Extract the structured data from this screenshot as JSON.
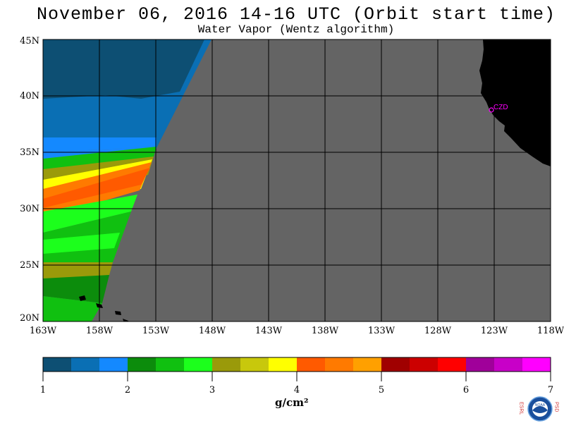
{
  "title": "November 06, 2016  14-16 UTC  (Orbit start time)",
  "subtitle": "Water Vapor (Wentz algorithm)",
  "map": {
    "lat_labels": [
      "45N",
      "40N",
      "35N",
      "30N",
      "25N",
      "20N"
    ],
    "lon_labels": [
      "163W",
      "158W",
      "153W",
      "148W",
      "143W",
      "138W",
      "133W",
      "128W",
      "123W",
      "118W"
    ],
    "station_label": "CZD",
    "station_color": "#ff00ff",
    "no_data_color": "#646464",
    "land_color": "#000000"
  },
  "colorbar": {
    "tick_labels": [
      "1",
      "2",
      "3",
      "4",
      "5",
      "6",
      "7"
    ],
    "unit": "g/cm²",
    "colors": [
      "#0d4f73",
      "#0a6fb4",
      "#1489ff",
      "#0c8c0c",
      "#10c010",
      "#1cff1c",
      "#9a9a0a",
      "#c8c80c",
      "#ffff00",
      "#ff5a00",
      "#ff7a00",
      "#ffa000",
      "#a00000",
      "#cc0000",
      "#ff0000",
      "#a0009a",
      "#c800c8",
      "#ff00ff"
    ]
  },
  "logo": {
    "left_text": "ESRL",
    "right_text": "PSD",
    "center_text": "NOAA"
  }
}
